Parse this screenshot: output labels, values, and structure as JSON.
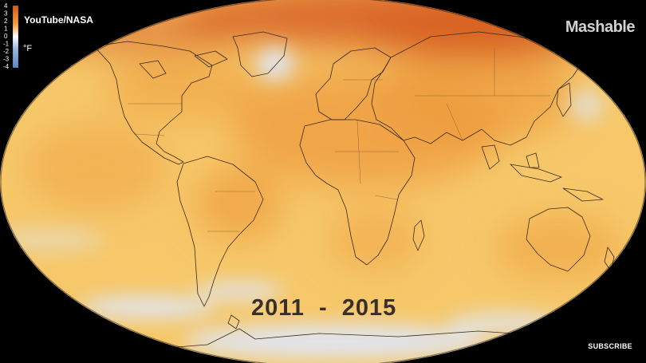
{
  "video": {
    "credit": "YouTube/NASA",
    "brand": "Mashable",
    "years": "2011  -  2015",
    "subscribe": "SUBSCRIBE"
  },
  "legend": {
    "unit": "°F",
    "ticks": [
      "4",
      "3",
      "2",
      "1",
      "0",
      "-1",
      "-2",
      "-3",
      "-4"
    ],
    "warm_color": "#d65a1e",
    "neutral_color": "#ffffff",
    "cool_color": "#5b86c5"
  },
  "map": {
    "projection": "robinson",
    "colors": {
      "ocean_base": "#f6c86a",
      "warm": "#ee9a3c",
      "hot": "#d65a1e",
      "cool": "#dfe6f4",
      "coastline": "#3a2a1a"
    }
  }
}
